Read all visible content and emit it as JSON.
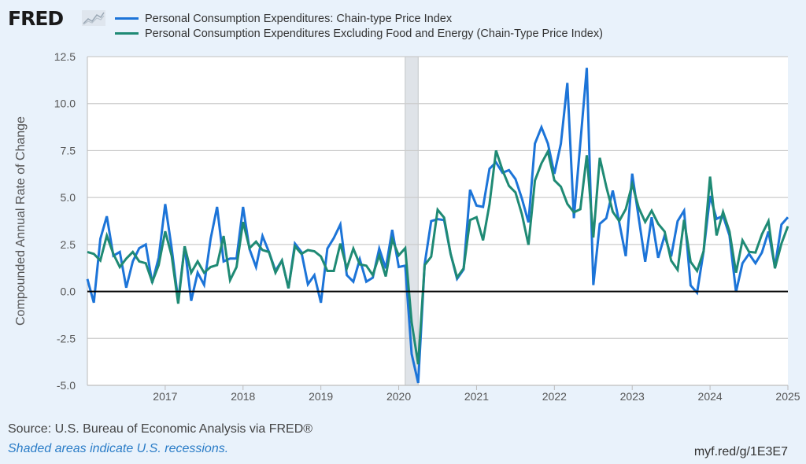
{
  "header": {
    "logo_text": "FRED",
    "logo_icon": "line-chart-icon"
  },
  "source_text": "Source: U.S. Bureau of Economic Analysis via FRED®",
  "note_text": "Shaded areas indicate U.S. recessions.",
  "short_link": "myf.red/g/1E3E7",
  "colors": {
    "pce": "#1c74d8",
    "core": "#1f8a74",
    "recession": "#dfe3e8",
    "background": "#e9f2fb",
    "zero_line": "#000000",
    "grid": "#cccccc"
  },
  "chart_data": {
    "type": "line",
    "title": "",
    "xlabel": "",
    "ylabel": "Compounded Annual Rate of Change",
    "ylim": [
      -5.0,
      12.5
    ],
    "yticks": [
      "12.5",
      "10.0",
      "7.5",
      "5.0",
      "2.5",
      "0.0",
      "-2.5",
      "-5.0"
    ],
    "ytick_values": [
      12.5,
      10.0,
      7.5,
      5.0,
      2.5,
      0.0,
      -2.5,
      -5.0
    ],
    "xlim": [
      "2016-01",
      "2025-01"
    ],
    "xticks": [
      "2017",
      "2018",
      "2019",
      "2020",
      "2021",
      "2022",
      "2023",
      "2024",
      "2025"
    ],
    "x_start": "2016-01",
    "frequency": "monthly",
    "grid": true,
    "legend_position": "top",
    "recessions": [
      {
        "start": "2020-02",
        "end": "2020-04"
      }
    ],
    "series": [
      {
        "name": "Personal Consumption Expenditures: Chain-type Price Index",
        "color_key": "pce",
        "values": [
          0.66,
          -0.6,
          2.8,
          4.0,
          1.9,
          2.1,
          0.2,
          1.6,
          2.3,
          2.5,
          0.45,
          1.8,
          4.65,
          2.3,
          -0.5,
          2.4,
          -0.5,
          1.0,
          0.35,
          2.8,
          4.5,
          1.6,
          1.75,
          1.75,
          4.5,
          2.25,
          1.3,
          2.95,
          2.1,
          1.1,
          1.65,
          0.17,
          2.55,
          2.1,
          0.38,
          0.87,
          -0.6,
          2.28,
          2.84,
          3.56,
          0.87,
          0.52,
          1.71,
          0.52,
          0.73,
          2.28,
          1.23,
          3.28,
          1.3,
          1.37,
          -3.33,
          -4.87,
          1.44,
          3.74,
          3.85,
          3.8,
          2.0,
          0.67,
          1.17,
          5.41,
          4.57,
          4.5,
          6.53,
          6.87,
          6.32,
          6.46,
          5.98,
          4.94,
          3.68,
          7.87,
          8.74,
          7.87,
          6.26,
          7.87,
          11.1,
          3.9,
          7.9,
          11.9,
          0.34,
          3.6,
          3.9,
          5.37,
          3.68,
          1.88,
          6.27,
          3.9,
          1.58,
          3.95,
          1.79,
          2.98,
          1.86,
          3.74,
          4.3,
          0.32,
          -0.07,
          2.14,
          5.08,
          3.86,
          4.03,
          2.98,
          -0.03,
          1.5,
          2.0,
          1.5,
          2.07,
          3.19,
          1.3,
          3.56,
          3.95
        ]
      },
      {
        "name": "Personal Consumption Expenditures Excluding Food and Energy (Chain-Type Price Index)",
        "color_key": "core",
        "values": [
          2.1,
          2.0,
          1.65,
          2.97,
          2.0,
          1.3,
          1.75,
          2.1,
          1.6,
          1.5,
          0.5,
          1.4,
          3.2,
          1.9,
          -0.65,
          2.4,
          1.0,
          1.6,
          1.0,
          1.3,
          1.4,
          2.95,
          0.6,
          1.3,
          3.7,
          2.3,
          2.65,
          2.2,
          2.1,
          1.0,
          1.65,
          0.17,
          2.4,
          2.0,
          2.2,
          2.14,
          1.86,
          1.09,
          1.09,
          2.55,
          1.23,
          2.28,
          1.44,
          1.37,
          0.87,
          1.92,
          0.8,
          2.76,
          1.92,
          2.3,
          -1.65,
          -3.88,
          1.4,
          1.85,
          4.35,
          3.93,
          2.0,
          0.75,
          1.23,
          3.8,
          3.95,
          2.72,
          4.64,
          7.5,
          6.46,
          5.62,
          5.27,
          4.1,
          2.48,
          5.9,
          6.82,
          7.45,
          5.92,
          5.57,
          4.66,
          4.21,
          4.38,
          7.25,
          2.87,
          7.11,
          5.57,
          4.24,
          3.75,
          4.38,
          5.71,
          4.45,
          3.7,
          4.3,
          3.6,
          3.19,
          1.64,
          1.15,
          3.81,
          1.58,
          1.09,
          2.14,
          6.11,
          2.98,
          4.23,
          3.19,
          1.0,
          2.72,
          2.11,
          2.07,
          3.04,
          3.74,
          1.23,
          2.55,
          3.47
        ]
      }
    ]
  }
}
